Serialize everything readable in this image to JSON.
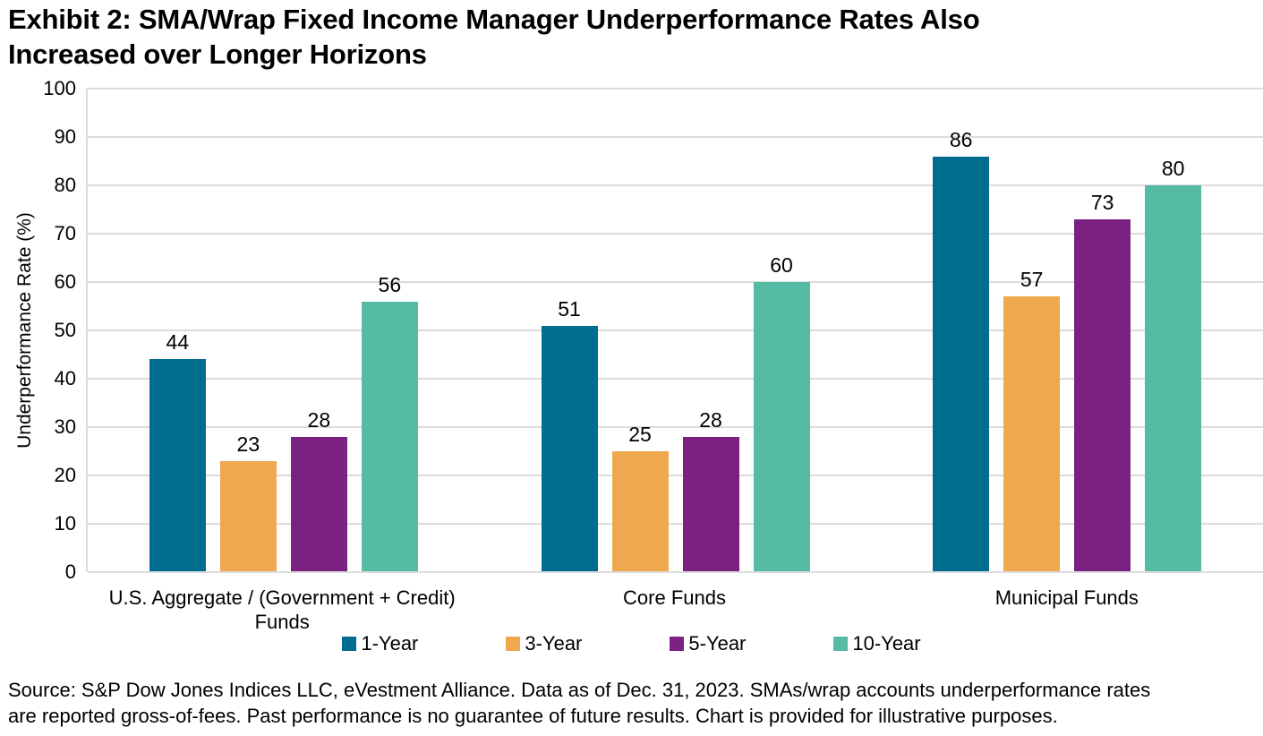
{
  "title": {
    "lines": [
      "Exhibit 2: SMA/Wrap Fixed Income Manager Underperformance Rates Also",
      "Increased over Longer Horizons"
    ],
    "text": "Exhibit 2: SMA/Wrap Fixed Income Manager Underperformance Rates Also Increased over Longer Horizons"
  },
  "chart_data": {
    "type": "bar",
    "title": "Exhibit 2: SMA/Wrap Fixed Income Manager Underperformance Rates Also Increased over Longer Horizons",
    "categories": [
      "U.S. Aggregate / (Government + Credit) Funds",
      "Core Funds",
      "Municipal Funds"
    ],
    "category_label_lines": [
      [
        "U.S. Aggregate / (Government + Credit)",
        "Funds"
      ],
      [
        "Core Funds"
      ],
      [
        "Municipal Funds"
      ]
    ],
    "series": [
      {
        "name": "1-Year",
        "color": "#006d8f",
        "values": [
          44,
          51,
          86
        ]
      },
      {
        "name": "3-Year",
        "color": "#f0a84e",
        "values": [
          23,
          25,
          57
        ]
      },
      {
        "name": "5-Year",
        "color": "#7a2182",
        "values": [
          28,
          28,
          73
        ]
      },
      {
        "name": "10-Year",
        "color": "#55bca3",
        "values": [
          56,
          60,
          80
        ]
      }
    ],
    "xlabel": "",
    "ylabel": "Underperformance Rate (%)",
    "ylim": [
      0,
      100
    ],
    "yticks": [
      0,
      10,
      20,
      30,
      40,
      50,
      60,
      70,
      80,
      90,
      100
    ],
    "grid": true,
    "gridline_color": "#dcdcdc",
    "legend_position": "bottom",
    "bar_value_labels": true
  },
  "source": {
    "lines": [
      "Source: S&P Dow Jones Indices LLC, eVestment Alliance. Data as of Dec. 31, 2023. SMAs/wrap accounts underperformance rates",
      "are reported gross-of-fees. Past performance is no guarantee of future results. Chart is provided for illustrative purposes."
    ],
    "text": "Source: S&P Dow Jones Indices LLC, eVestment Alliance. Data as of Dec. 31, 2023. SMAs/wrap accounts underperformance rates are reported gross-of-fees. Past performance is no guarantee of future results. Chart is provided for illustrative purposes."
  },
  "colors": {
    "background": "#ffffff",
    "text": "#000000",
    "gridline": "#dcdcdc"
  }
}
